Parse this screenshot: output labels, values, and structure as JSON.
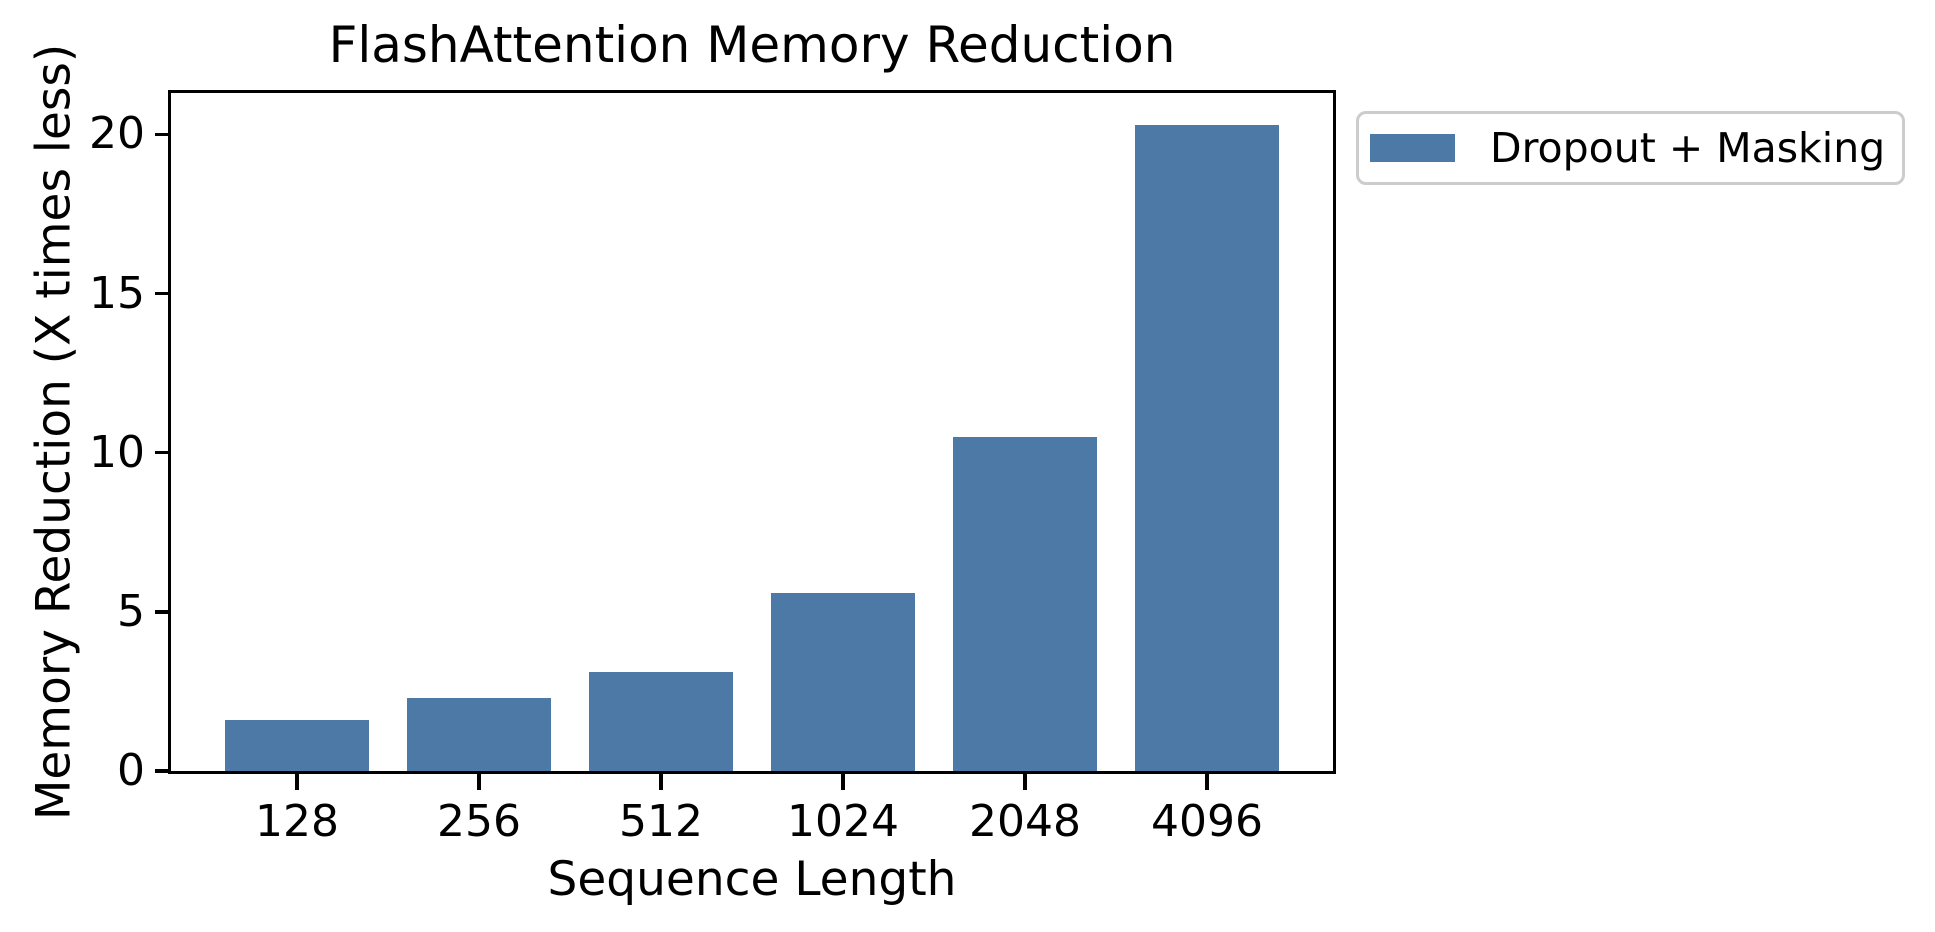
{
  "chart_data": {
    "type": "bar",
    "title": "FlashAttention Memory Reduction",
    "xlabel": "Sequence Length",
    "ylabel": "Memory Reduction (X times less)",
    "categories": [
      "128",
      "256",
      "512",
      "1024",
      "2048",
      "4096"
    ],
    "series": [
      {
        "name": "Dropout + Masking",
        "values": [
          1.6,
          2.3,
          3.1,
          5.6,
          10.5,
          20.3
        ]
      }
    ],
    "ylim": [
      0,
      21.3
    ],
    "yticks": [
      0,
      5,
      10,
      15,
      20
    ],
    "grid": false,
    "legend_position": "outside-upper-right",
    "bar_color": "#4D79A7",
    "axis_color": "#000000",
    "legend_border_color": "#cccccc"
  },
  "legend": {
    "label": "Dropout + Masking"
  }
}
